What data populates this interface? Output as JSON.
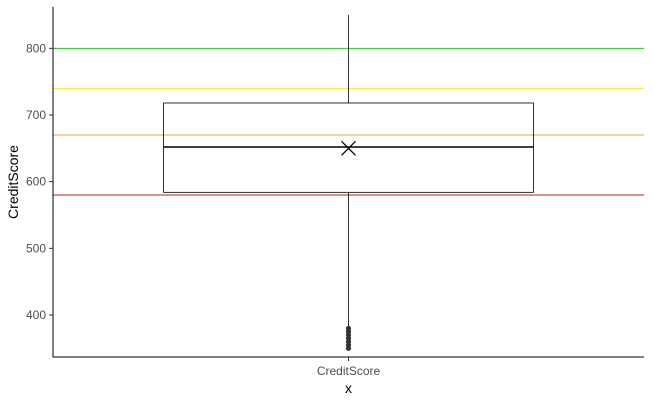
{
  "chart_data": {
    "type": "boxplot",
    "xlabel": "x",
    "ylabel": "CreditScore",
    "categories": [
      "CreditScore"
    ],
    "yticks": [
      400,
      500,
      600,
      700,
      800
    ],
    "ylim": [
      337,
      862
    ],
    "box": {
      "whisker_low": 350,
      "q1": 584,
      "median": 652,
      "q3": 718,
      "whisker_high": 850,
      "mean": 650,
      "outliers": [
        350,
        355,
        360,
        365,
        370,
        375,
        380
      ]
    },
    "reference_lines": [
      {
        "value": 800,
        "color": "#22c322"
      },
      {
        "value": 740,
        "color": "#f0f01e"
      },
      {
        "value": 670,
        "color": "#f5a23c"
      },
      {
        "value": 580,
        "color": "#b22222"
      }
    ],
    "grid": false,
    "legend": "none"
  }
}
